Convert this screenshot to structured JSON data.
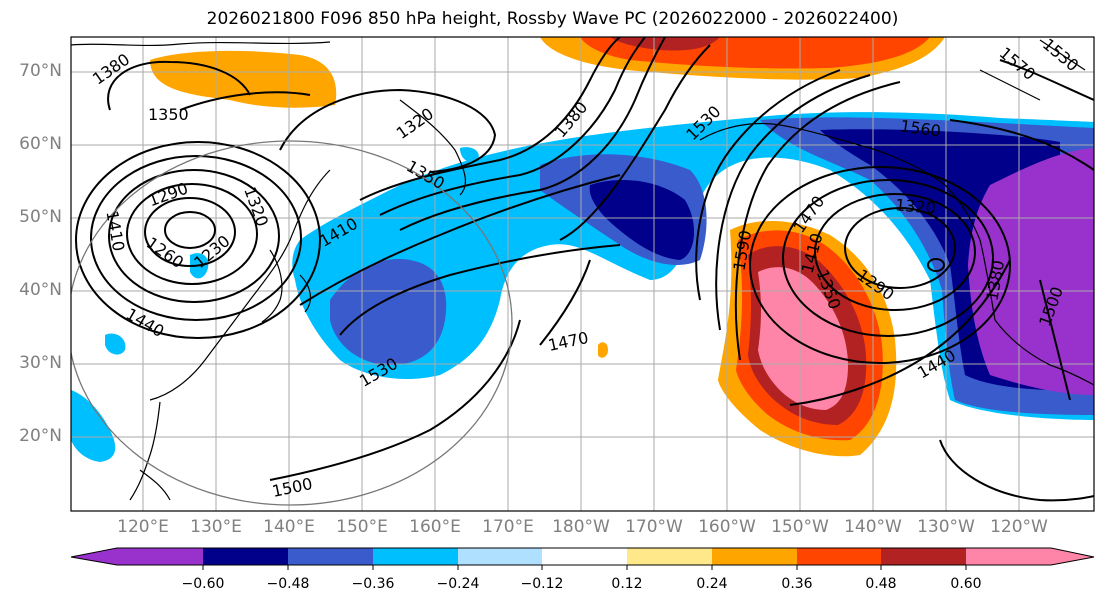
{
  "title": "2026021800 F096 850 hPa height, Rossby Wave PC (2026022000 - 2026022400)",
  "lat_labels": [
    "70°N",
    "60°N",
    "50°N",
    "40°N",
    "30°N",
    "20°N"
  ],
  "lon_labels": [
    "120°E",
    "130°E",
    "140°E",
    "150°E",
    "160°E",
    "170°E",
    "180°W",
    "170°W",
    "160°W",
    "150°W",
    "140°W",
    "130°W",
    "120°W"
  ],
  "contour_labels": [
    "1380",
    "1350",
    "1320",
    "1380",
    "1530",
    "1560",
    "1570",
    "1530",
    "1290",
    "1320",
    "1350",
    "1410",
    "1470",
    "1320",
    "1290",
    "1440",
    "1500",
    "1380",
    "1440",
    "1260",
    "1230",
    "1410",
    "1470",
    "1530",
    "1500",
    "1590",
    "1410",
    "1350"
  ],
  "colorbar": {
    "colors": [
      "#9932cc",
      "#00008b",
      "#3a5bcc",
      "#00bfff",
      "#b0e0ff",
      "#ffffff",
      "#ffe88a",
      "#ffa500",
      "#ff4500",
      "#b22222",
      "#ff85a8"
    ],
    "tick_labels": [
      "−0.60",
      "−0.48",
      "−0.36",
      "−0.24",
      "−0.12",
      "0.12",
      "0.24",
      "0.36",
      "0.48",
      "0.60"
    ]
  },
  "fill_colors": {
    "purple": "#9932cc",
    "navy": "#00008b",
    "royal": "#3a5bcc",
    "cyan": "#00bfff",
    "orange": "#ffa500",
    "redorange": "#ff4500",
    "firebrick": "#b22222",
    "pink": "#ff85a8",
    "yellow": "#ffe88a"
  }
}
